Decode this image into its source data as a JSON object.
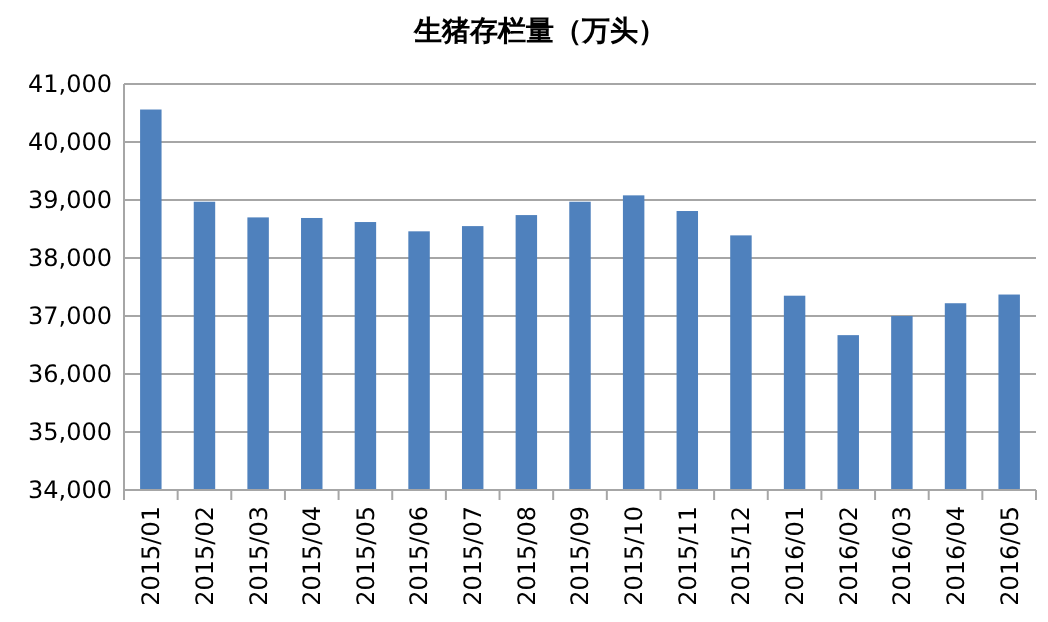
{
  "chart_data": {
    "type": "bar",
    "title": "生猪存栏量（万头）",
    "categories": [
      "2015/01",
      "2015/02",
      "2015/03",
      "2015/04",
      "2015/05",
      "2015/06",
      "2015/07",
      "2015/08",
      "2015/09",
      "2015/10",
      "2015/11",
      "2015/12",
      "2016/01",
      "2016/02",
      "2016/03",
      "2016/04",
      "2016/05"
    ],
    "values": [
      40560,
      38970,
      38700,
      38690,
      38620,
      38460,
      38550,
      38740,
      38970,
      39080,
      38810,
      38390,
      37350,
      36670,
      37000,
      37220,
      37370
    ],
    "color": "#4f81bd",
    "ylim": [
      34000,
      41000
    ],
    "yticks": [
      {
        "value": 34000,
        "label": "34,000"
      },
      {
        "value": 35000,
        "label": "35,000"
      },
      {
        "value": 36000,
        "label": "36,000"
      },
      {
        "value": 37000,
        "label": "37,000"
      },
      {
        "value": 38000,
        "label": "38,000"
      },
      {
        "value": 39000,
        "label": "39,000"
      },
      {
        "value": 40000,
        "label": "40,000"
      },
      {
        "value": 41000,
        "label": "41,000"
      }
    ],
    "grid": "y"
  }
}
